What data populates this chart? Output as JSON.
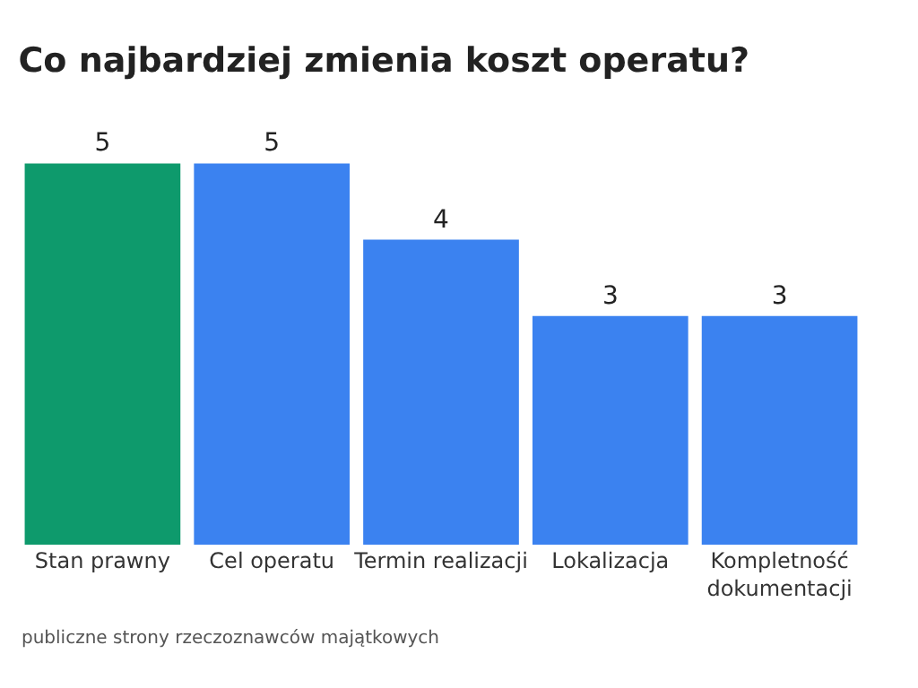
{
  "chart_data": {
    "type": "bar",
    "title": "Co najbardziej zmienia koszt operatu?",
    "categories": [
      "Stan prawny",
      "Cel operatu",
      "Termin realizacji",
      "Lokalizacja",
      "Kompletność dokumentacji"
    ],
    "values": [
      5,
      5,
      4,
      3,
      3
    ],
    "colors": [
      "#0e9a6c",
      "#3b82f0",
      "#3b82f0",
      "#3b82f0",
      "#3b82f0"
    ],
    "data_labels": true,
    "legend": false,
    "annotations": [
      "publiczne strony rzeczoznawców majątkowych"
    ]
  }
}
